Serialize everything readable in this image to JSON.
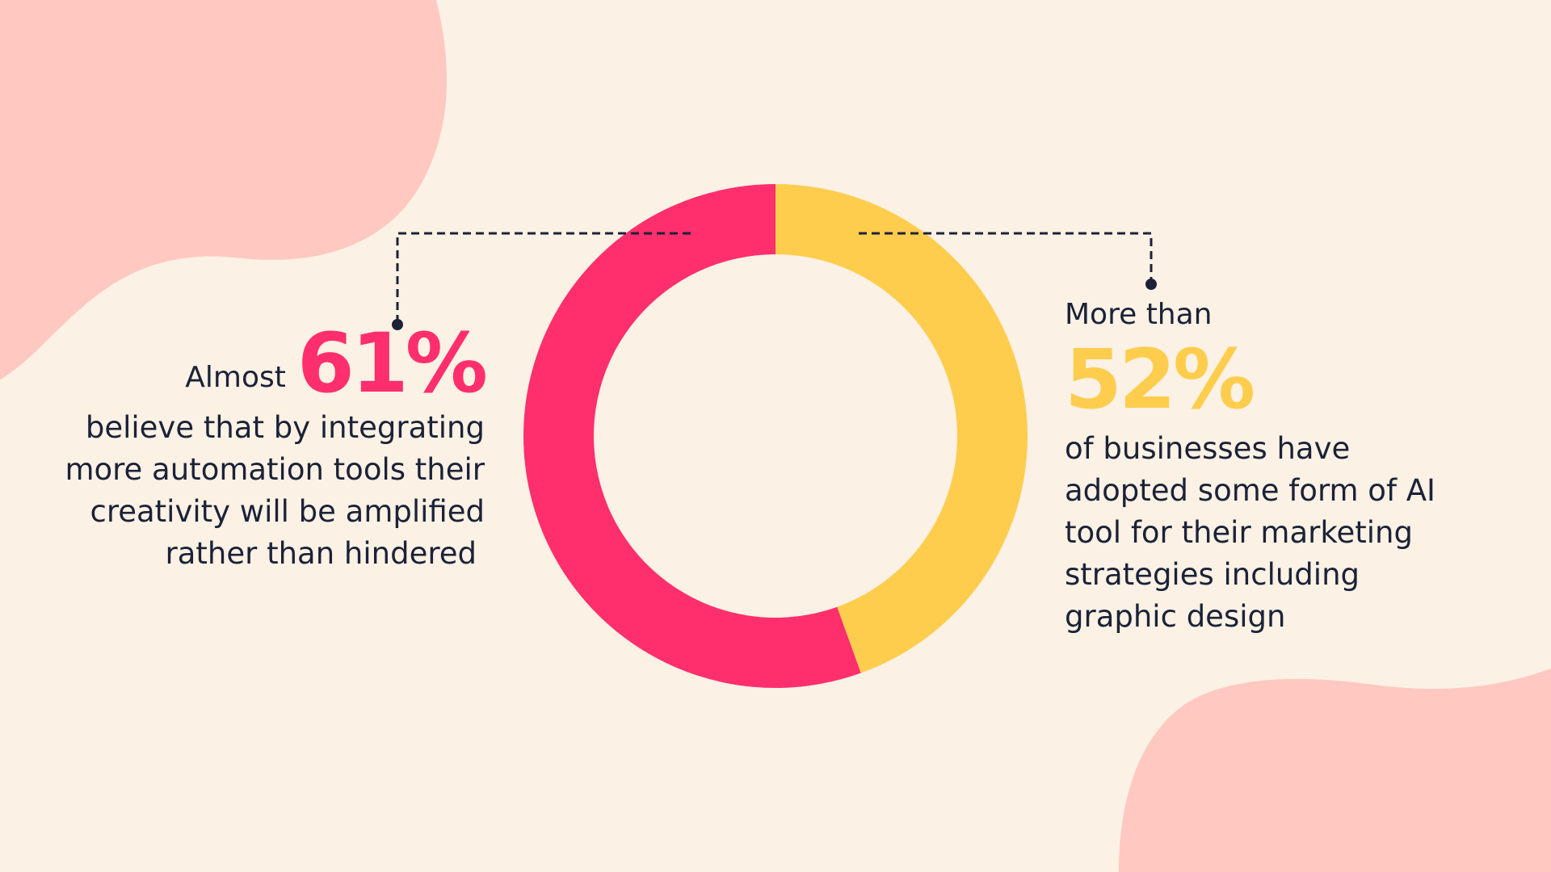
{
  "colors": {
    "background": "#FBF1E4",
    "blob": "#FFC8C0",
    "primary": "#FF2F6D",
    "secondary": "#FECD4E",
    "text": "#1B2238"
  },
  "left_stat": {
    "prefix": "Almost",
    "value": "61%",
    "lines": [
      "believe that by integrating",
      "more automation tools their",
      "creativity will be amplified",
      "rather than hindered"
    ]
  },
  "right_stat": {
    "prefix": "More than",
    "value": "52%",
    "lines": [
      "of businesses have",
      "adopted some form of AI",
      "tool for their marketing",
      "strategies including",
      "graphic design"
    ]
  },
  "chart_data": {
    "type": "pie",
    "variant": "donut",
    "series": [
      {
        "value": 55.5,
        "color": "#FF2F6D"
      },
      {
        "value": 44.5,
        "color": "#FECD4E"
      }
    ]
  }
}
